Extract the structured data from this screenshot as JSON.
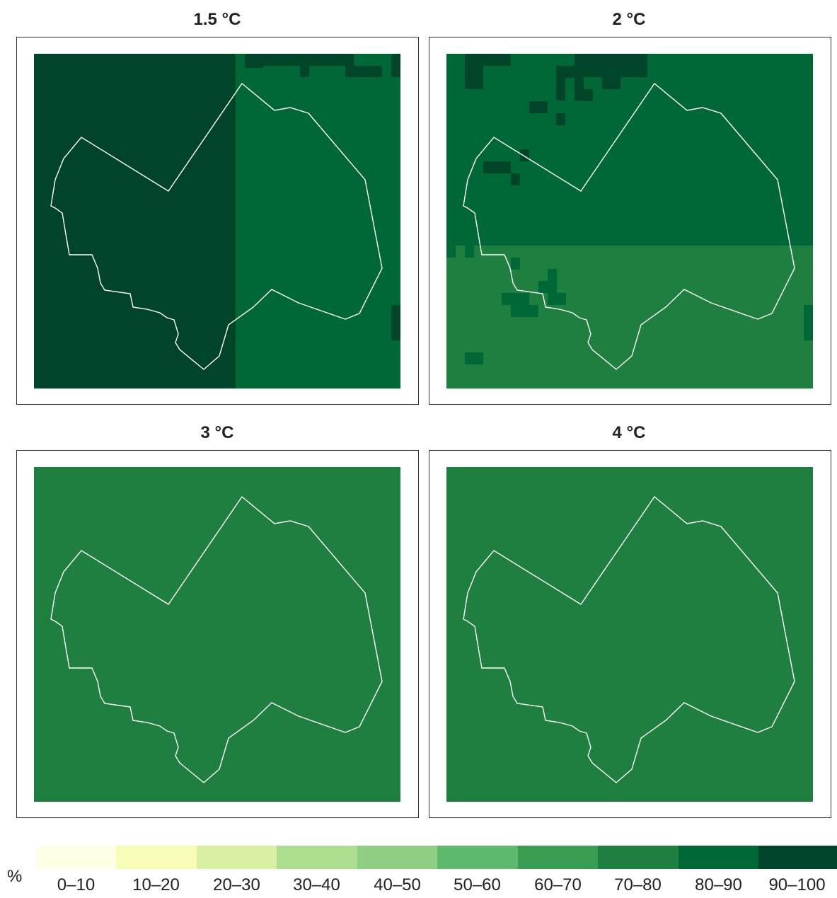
{
  "panels": [
    {
      "title": "1.5 °C",
      "pattern": "split-west-east",
      "base_class": "80-90",
      "secondary_class": "90-100"
    },
    {
      "title": "2 °C",
      "pattern": "split-north-south",
      "base_class": "80-90",
      "secondary_class": "70-80"
    },
    {
      "title": "3 °C",
      "pattern": "uniform",
      "base_class": "70-80"
    },
    {
      "title": "4 °C",
      "pattern": "uniform",
      "base_class": "70-80"
    }
  ],
  "legend": {
    "unit": "%",
    "classes": [
      {
        "label": "0–10",
        "color": "#ffffe5"
      },
      {
        "label": "10–20",
        "color": "#f7fcb9"
      },
      {
        "label": "20–30",
        "color": "#d9f0a3"
      },
      {
        "label": "30–40",
        "color": "#addd8e"
      },
      {
        "label": "40–50",
        "color": "#8fcf84"
      },
      {
        "label": "50–60",
        "color": "#5db96b"
      },
      {
        "label": "60–70",
        "color": "#3a9e52"
      },
      {
        "label": "70–80",
        "color": "#1e7f41"
      },
      {
        "label": "80–90",
        "color": "#006837"
      },
      {
        "label": "90–100",
        "color": "#004529"
      }
    ]
  },
  "colors": {
    "outline": "#ffffff",
    "frame": "#333333"
  }
}
